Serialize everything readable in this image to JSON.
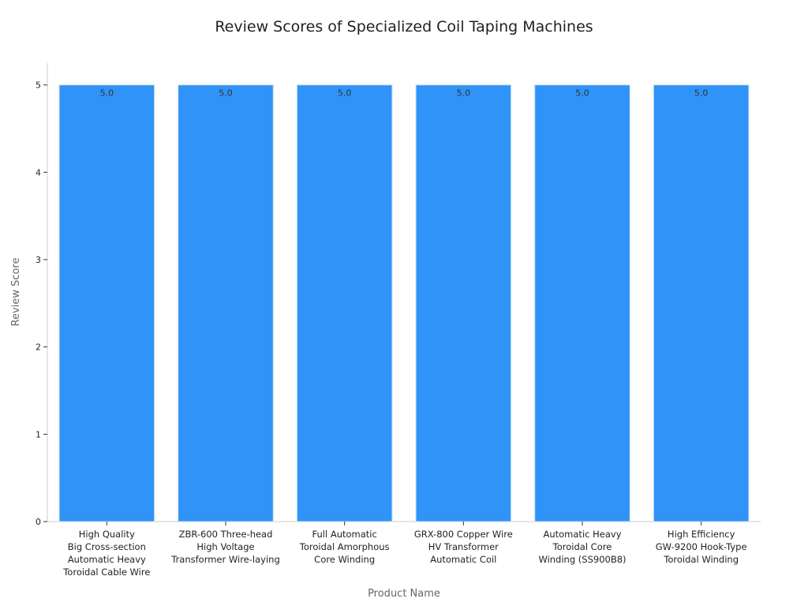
{
  "chart_data": {
    "type": "bar",
    "title": "Review Scores of Specialized Coil Taping Machines",
    "xlabel": "Product Name",
    "ylabel": "Review Score",
    "ylim": [
      0,
      5.25
    ],
    "yticks": [
      "0",
      "1",
      "2",
      "3",
      "4",
      "5"
    ],
    "grid": false,
    "bar_color": "#2f93f8",
    "bar_edge_color": "#c8dcf0",
    "categories": [
      "High Quality Big Cross-section Automatic Heavy Toroidal Cable Wire",
      "ZBR-600 Three-head High Voltage Transformer Wire-laying",
      "Full Automatic Toroidal Amorphous Core Winding",
      "GRX-800 Copper Wire HV Transformer Automatic Coil",
      "Automatic Heavy Toroidal Core Winding (SS900B8)",
      "High Efficiency GW-9200 Hook-Type Toroidal Winding"
    ],
    "category_lines": [
      [
        "High Quality",
        "Big Cross-section",
        "Automatic Heavy",
        "Toroidal Cable Wire"
      ],
      [
        "ZBR-600 Three-head",
        "High Voltage",
        "Transformer Wire-laying"
      ],
      [
        "Full Automatic",
        "Toroidal Amorphous",
        "Core Winding"
      ],
      [
        "GRX-800 Copper Wire",
        "HV Transformer",
        "Automatic Coil"
      ],
      [
        "Automatic Heavy",
        "Toroidal Core",
        "Winding (SS900B8)"
      ],
      [
        "High Efficiency",
        "GW-9200 Hook-Type",
        "Toroidal Winding"
      ]
    ],
    "values": [
      5.0,
      5.0,
      5.0,
      5.0,
      5.0,
      5.0
    ],
    "data_labels": [
      "5.0",
      "5.0",
      "5.0",
      "5.0",
      "5.0",
      "5.0"
    ]
  }
}
